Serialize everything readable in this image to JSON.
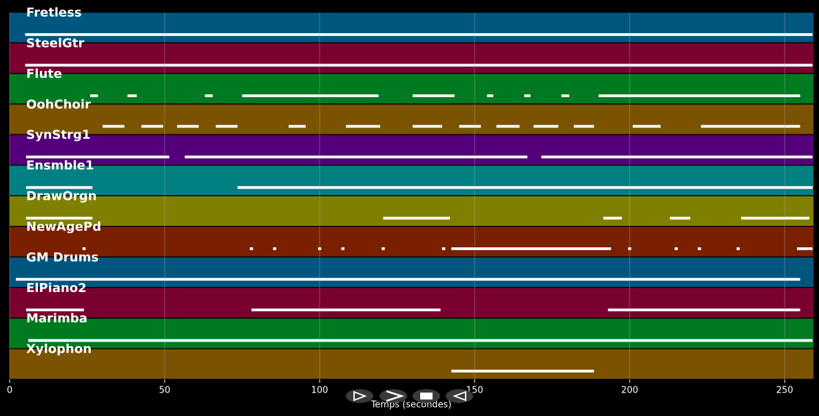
{
  "chart_data": {
    "type": "track-lanes",
    "x_label": "Temps (secondes)",
    "xlim": [
      0,
      259.3
    ],
    "xticks": [
      0,
      50,
      100,
      150,
      200,
      250
    ],
    "grid": true,
    "tracks": [
      {
        "name": "Fretless",
        "color": "#00567f",
        "segments": [
          [
            5,
            259
          ]
        ]
      },
      {
        "name": "SteelGtr",
        "color": "#7a0030",
        "segments": [
          [
            5,
            259
          ]
        ]
      },
      {
        "name": "Flute",
        "color": "#007a20",
        "segments": [
          [
            26,
            28.5
          ],
          [
            38,
            41
          ],
          [
            63,
            65.5
          ],
          [
            75,
            119
          ],
          [
            130,
            143.5
          ],
          [
            154,
            156
          ],
          [
            166,
            168
          ],
          [
            178,
            180.5
          ],
          [
            190,
            255
          ]
        ]
      },
      {
        "name": "OohChoir",
        "color": "#7a5200",
        "segments": [
          [
            30,
            37
          ],
          [
            42.5,
            49.5
          ],
          [
            54,
            61
          ],
          [
            66.5,
            73.5
          ],
          [
            90,
            95.5
          ],
          [
            108.5,
            119.5
          ],
          [
            130,
            139.5
          ],
          [
            145,
            152
          ],
          [
            157,
            164.5
          ],
          [
            169,
            177
          ],
          [
            182,
            188.5
          ],
          [
            201,
            210
          ],
          [
            223,
            255
          ]
        ]
      },
      {
        "name": "SynStrg1",
        "color": "#55007a",
        "segments": [
          [
            5.3,
            51.5
          ],
          [
            56.5,
            167
          ],
          [
            171.5,
            259
          ]
        ]
      },
      {
        "name": "Ensmble1",
        "color": "#008080",
        "segments": [
          [
            5.3,
            26.7
          ],
          [
            73.5,
            259
          ]
        ]
      },
      {
        "name": "DrawOrgn",
        "color": "#808000",
        "segments": [
          [
            5.3,
            26.7
          ],
          [
            120.5,
            142
          ],
          [
            191.5,
            197.5
          ],
          [
            213,
            219.5
          ],
          [
            236,
            258
          ]
        ]
      },
      {
        "name": "NewAgePd",
        "color": "#7a2000",
        "segments": [
          [
            23.5,
            24.5
          ],
          [
            77.5,
            78.5
          ],
          [
            85,
            86
          ],
          [
            99.5,
            100.5
          ],
          [
            107,
            108
          ],
          [
            120,
            121
          ],
          [
            139.5,
            140.5
          ],
          [
            142.5,
            194
          ],
          [
            199.5,
            200.5
          ],
          [
            214.5,
            215.5
          ],
          [
            222,
            223
          ],
          [
            234.5,
            235.5
          ],
          [
            254,
            259
          ]
        ]
      },
      {
        "name": "GM Drums",
        "color": "#00567f",
        "segments": [
          [
            2,
            255
          ]
        ]
      },
      {
        "name": "ElPiano2",
        "color": "#7a0030",
        "segments": [
          [
            5.3,
            24
          ],
          [
            78,
            139
          ],
          [
            193,
            255
          ]
        ]
      },
      {
        "name": "Marimba",
        "color": "#007a20",
        "segments": [
          [
            6,
            259
          ]
        ]
      },
      {
        "name": "Xylophon",
        "color": "#7a5200",
        "segments": [
          [
            142.5,
            188.5
          ]
        ]
      }
    ]
  }
}
